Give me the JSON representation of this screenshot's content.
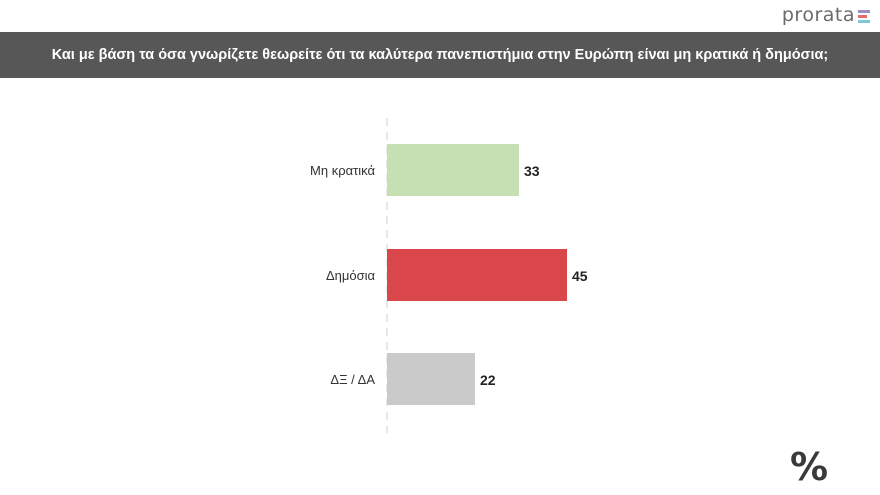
{
  "header": {
    "brand": "prorata",
    "title": "Και με βάση τα όσα γνωρίζετε θεωρείτε ότι τα καλύτερα πανεπιστήμια στην Ευρώπη είναι μη κρατικά ή δημόσια;"
  },
  "footer": {
    "symbol": "%"
  },
  "colors": {
    "title_bar": "#575757",
    "logo_bar_1": "#9b8ec4",
    "logo_bar_2": "#e36c6c",
    "logo_bar_3": "#7fc7d9"
  },
  "chart_data": {
    "type": "bar",
    "orientation": "horizontal",
    "categories": [
      "Μη κρατικά",
      "Δημόσια",
      "ΔΞ / ΔΑ"
    ],
    "values": [
      33,
      45,
      22
    ],
    "colors": [
      "#c6e0b4",
      "#d9474a",
      "#cacaca"
    ],
    "xlim": [
      0,
      100
    ],
    "grid": false
  }
}
